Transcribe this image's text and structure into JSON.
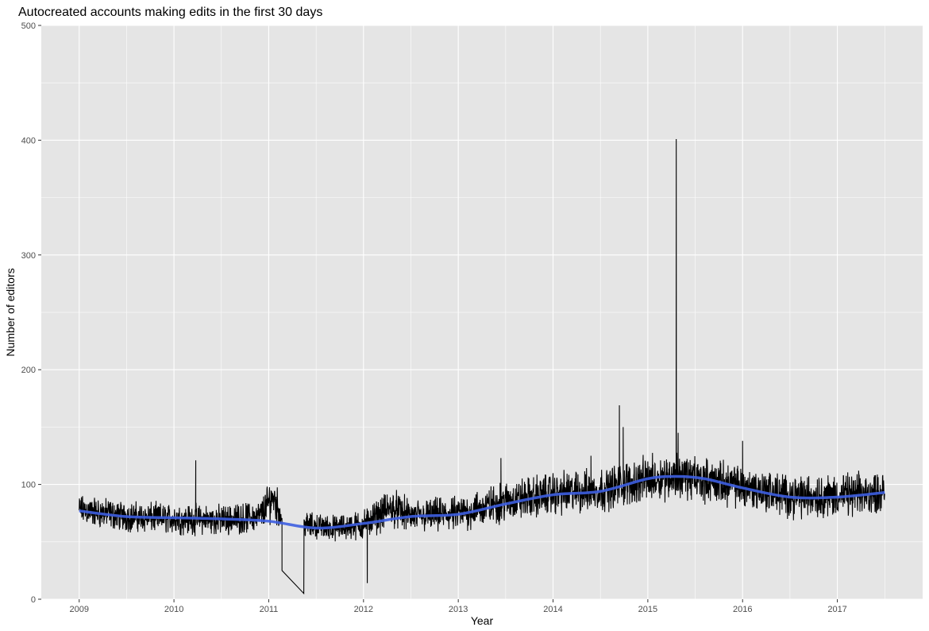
{
  "chart_data": {
    "type": "line",
    "title": "Autocreated accounts making edits in the first 30 days",
    "xlabel": "Year",
    "ylabel": "Number of editors",
    "xlim": [
      2008.6,
      2017.9
    ],
    "ylim": [
      0,
      500
    ],
    "x_ticks": [
      "2009",
      "2010",
      "2011",
      "2012",
      "2013",
      "2014",
      "2015",
      "2016",
      "2017"
    ],
    "y_ticks": [
      "0",
      "100",
      "200",
      "300",
      "400",
      "500"
    ],
    "grid": true,
    "colors": {
      "panel_background": "#e5e5e5",
      "grid": "#ffffff",
      "daily_series": "#000000",
      "smooth_series": "#3d5ee0"
    },
    "series": [
      {
        "style": "noisy daily line",
        "approx_range_note": "",
        "anchors": [
          {
            "x": 2009.0,
            "y": 78,
            "spread": 12
          },
          {
            "x": 2009.5,
            "y": 72,
            "spread": 12
          },
          {
            "x": 2010.0,
            "y": 70,
            "spread": 12
          },
          {
            "x": 2010.5,
            "y": 69,
            "spread": 12
          },
          {
            "x": 2010.9,
            "y": 72,
            "spread": 12
          },
          {
            "x": 2011.05,
            "y": 90,
            "spread": 18
          },
          {
            "x": 2011.13,
            "y": 72,
            "spread": 12
          },
          {
            "x": 2011.35,
            "y": 65,
            "spread": 10
          },
          {
            "x": 2011.7,
            "y": 62,
            "spread": 10
          },
          {
            "x": 2012.0,
            "y": 65,
            "spread": 12
          },
          {
            "x": 2012.3,
            "y": 80,
            "spread": 15
          },
          {
            "x": 2012.5,
            "y": 72,
            "spread": 13
          },
          {
            "x": 2013.0,
            "y": 74,
            "spread": 14
          },
          {
            "x": 2013.5,
            "y": 85,
            "spread": 16
          },
          {
            "x": 2014.0,
            "y": 92,
            "spread": 17
          },
          {
            "x": 2014.5,
            "y": 95,
            "spread": 17
          },
          {
            "x": 2015.0,
            "y": 105,
            "spread": 18
          },
          {
            "x": 2015.3,
            "y": 108,
            "spread": 18
          },
          {
            "x": 2015.6,
            "y": 104,
            "spread": 17
          },
          {
            "x": 2016.0,
            "y": 98,
            "spread": 17
          },
          {
            "x": 2016.5,
            "y": 90,
            "spread": 17
          },
          {
            "x": 2017.0,
            "y": 90,
            "spread": 17
          },
          {
            "x": 2017.5,
            "y": 93,
            "spread": 16
          }
        ],
        "spikes": [
          {
            "x": 2010.23,
            "y": 121
          },
          {
            "x": 2011.14,
            "y": 25
          },
          {
            "x": 2011.37,
            "y": 5
          },
          {
            "x": 2012.04,
            "y": 14
          },
          {
            "x": 2013.45,
            "y": 123
          },
          {
            "x": 2014.4,
            "y": 125
          },
          {
            "x": 2014.7,
            "y": 169
          },
          {
            "x": 2014.74,
            "y": 150
          },
          {
            "x": 2015.3,
            "y": 401
          },
          {
            "x": 2015.32,
            "y": 145
          },
          {
            "x": 2016.0,
            "y": 138
          }
        ]
      },
      {
        "style": "smoothed trend line",
        "points": [
          {
            "x": 2009.0,
            "y": 77
          },
          {
            "x": 2009.5,
            "y": 72
          },
          {
            "x": 2010.0,
            "y": 71
          },
          {
            "x": 2010.5,
            "y": 70
          },
          {
            "x": 2011.0,
            "y": 68
          },
          {
            "x": 2011.5,
            "y": 62
          },
          {
            "x": 2012.0,
            "y": 66
          },
          {
            "x": 2012.5,
            "y": 72
          },
          {
            "x": 2013.0,
            "y": 74
          },
          {
            "x": 2013.5,
            "y": 83
          },
          {
            "x": 2014.0,
            "y": 91
          },
          {
            "x": 2014.5,
            "y": 94
          },
          {
            "x": 2015.0,
            "y": 105
          },
          {
            "x": 2015.3,
            "y": 107
          },
          {
            "x": 2015.6,
            "y": 105
          },
          {
            "x": 2016.0,
            "y": 97
          },
          {
            "x": 2016.5,
            "y": 89
          },
          {
            "x": 2017.0,
            "y": 89
          },
          {
            "x": 2017.5,
            "y": 93
          }
        ]
      }
    ]
  }
}
